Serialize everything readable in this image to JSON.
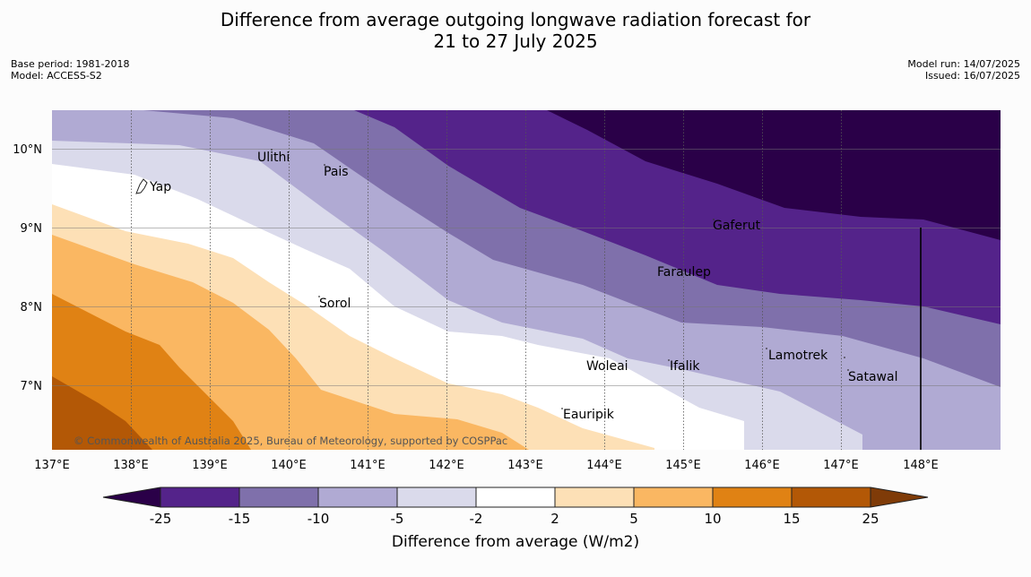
{
  "title_line1": "Difference from average outgoing longwave radiation forecast for",
  "title_line2": "21 to 27 July 2025",
  "left_meta": {
    "base_period": "Base period: 1981-2018",
    "model": "Model: ACCESS-S2"
  },
  "right_meta": {
    "model_run": "Model run: 14/07/2025",
    "issued": "Issued: 16/07/2025"
  },
  "longitude_labels": [
    "137°E",
    "138°E",
    "139°E",
    "140°E",
    "141°E",
    "142°E",
    "143°E",
    "144°E",
    "145°E",
    "146°E",
    "147°E",
    "148°E"
  ],
  "latitude_labels": [
    "10°N",
    "9°N",
    "8°N",
    "7°N"
  ],
  "islands": [
    "Ulithi",
    "Pais",
    "Yap",
    "Gaferut",
    "Faraulep",
    "Sorol",
    "Lamotrek",
    "Woleai",
    "Ifalik",
    "Satawal",
    "Eauripik"
  ],
  "copyright": "© Commonwealth of Australia 2025, Bureau of Meteorology, supported by COSPPac",
  "colorbar": {
    "ticks": [
      "-25",
      "-15",
      "-10",
      "-5",
      "-2",
      "2",
      "5",
      "10",
      "15",
      "25"
    ],
    "colors": [
      "#2a0048",
      "#54238a",
      "#7f70ab",
      "#b0aad3",
      "#dadaeb",
      "#ffffff",
      "#fde0b6",
      "#fab762",
      "#e08214",
      "#b35806",
      "#7f3b08"
    ],
    "label": "Difference from average (W/m2)"
  }
}
